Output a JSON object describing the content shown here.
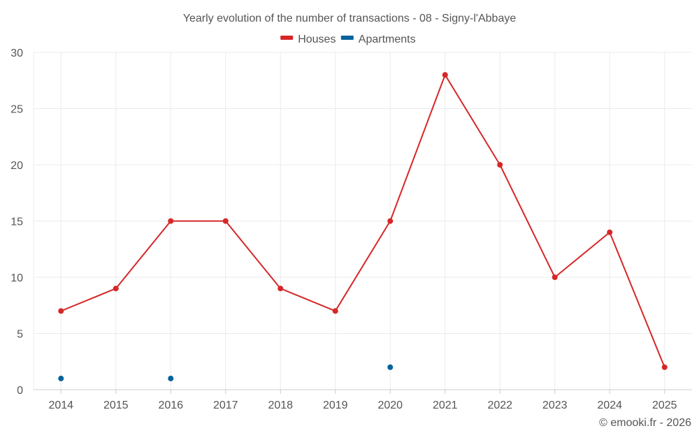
{
  "chart_data": {
    "type": "line",
    "title": "Yearly evolution of the number of transactions - 08 - Signy-l'Abbaye",
    "xlabel": "",
    "ylabel": "",
    "categories": [
      "2014",
      "2015",
      "2016",
      "2017",
      "2018",
      "2019",
      "2020",
      "2021",
      "2022",
      "2023",
      "2024",
      "2025"
    ],
    "ylim": [
      0,
      30
    ],
    "yticks": [
      0,
      5,
      10,
      15,
      20,
      25,
      30
    ],
    "grid": true,
    "legend_position": "top-center",
    "series": [
      {
        "name": "Houses",
        "color": "#d62728",
        "values": [
          7,
          9,
          15,
          15,
          9,
          7,
          15,
          28,
          20,
          10,
          14,
          2
        ]
      },
      {
        "name": "Apartments",
        "color": "#00639b",
        "values": [
          1,
          null,
          1,
          null,
          null,
          null,
          2,
          null,
          null,
          null,
          null,
          null
        ]
      }
    ],
    "credit": "© emooki.fr - 2026"
  },
  "colors": {
    "grid": "#ebebeb",
    "axis": "#cccccc",
    "text": "#555555"
  }
}
